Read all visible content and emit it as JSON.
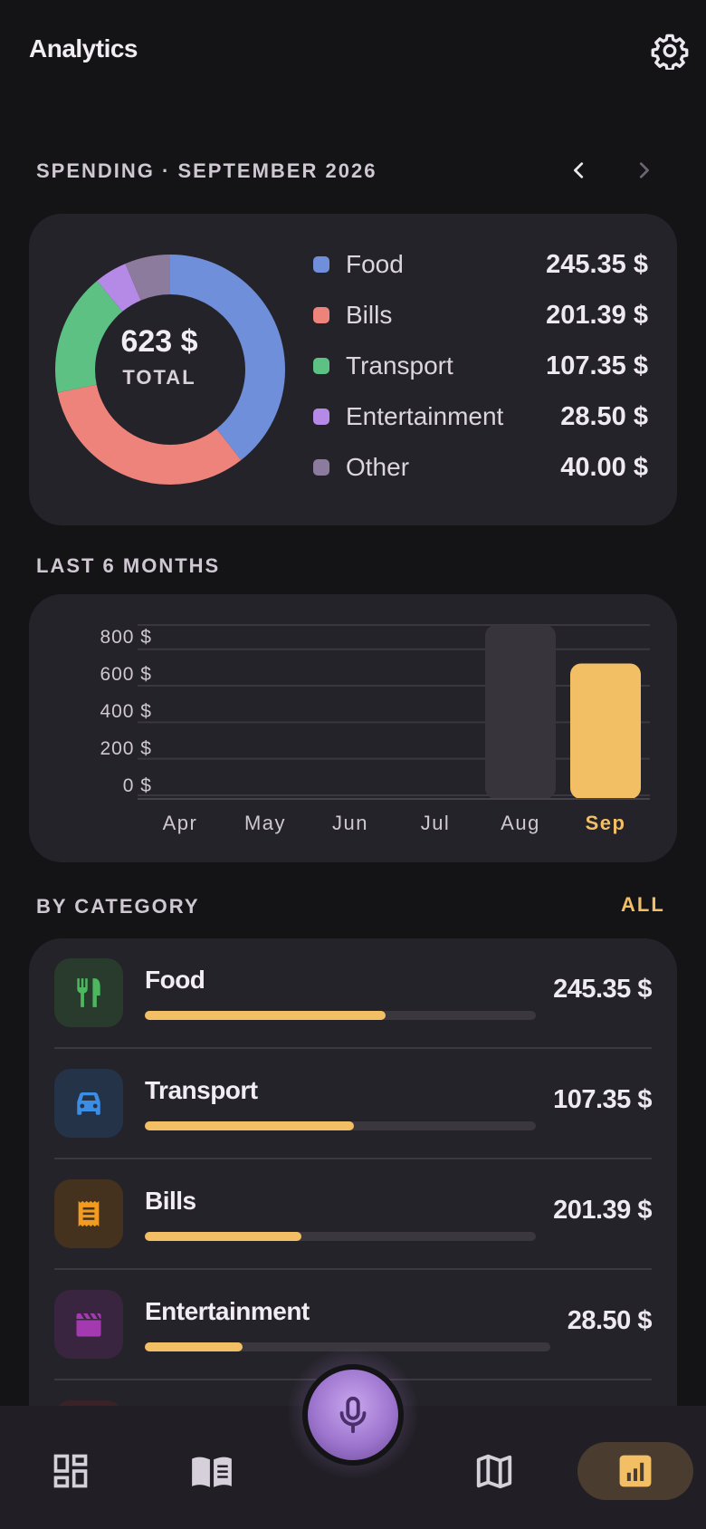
{
  "appbar": {
    "title": "Analytics",
    "settings_icon": "gear-icon"
  },
  "spending": {
    "title": "SPENDING · SEPTEMBER 2026",
    "prev_icon": "chevron-left-icon",
    "next_icon": "chevron-right-icon",
    "total_value": "623 $",
    "total_label": "TOTAL"
  },
  "legend": [
    {
      "label": "Food",
      "value": "245.35 $",
      "color": "#6F8FDB"
    },
    {
      "label": "Bills",
      "value": "201.39 $",
      "color": "#EE837C"
    },
    {
      "label": "Transport",
      "value": "107.35 $",
      "color": "#5DC184"
    },
    {
      "label": "Entertainment",
      "value": "28.50 $",
      "color": "#B58AE6"
    },
    {
      "label": "Other",
      "value": "40.00 $",
      "color": "#8C7B9C"
    }
  ],
  "months_section": {
    "title": "LAST 6 MONTHS"
  },
  "chart_data": [
    {
      "type": "pie",
      "labels": [
        "Food",
        "Bills",
        "Transport",
        "Entertainment",
        "Other"
      ],
      "values": [
        245.35,
        201.39,
        107.35,
        28.5,
        40.0
      ],
      "colors": [
        "#6F8FDB",
        "#EE837C",
        "#5DC184",
        "#B58AE6",
        "#8C7B9C"
      ],
      "title": "",
      "center_value": "623 $",
      "center_label": "TOTAL"
    },
    {
      "type": "bar",
      "title": "",
      "categories": [
        "Apr",
        "May",
        "Jun",
        "Jul",
        "Aug",
        "Sep"
      ],
      "values": [
        0,
        0,
        0,
        0,
        800,
        623
      ],
      "yticks": [
        "0 $",
        "200 $",
        "400 $",
        "600 $",
        "800 $"
      ],
      "ylim": [
        0,
        800
      ],
      "highlight": "Sep",
      "colors": {
        "highlight": "#F2BF65",
        "default": "#38343C"
      },
      "grid": true
    }
  ],
  "categories_section": {
    "title": "BY CATEGORY",
    "all_label": "ALL"
  },
  "categories": [
    {
      "name": "Food",
      "amount": "245.35 $",
      "share": 0.615,
      "icon": "fork-knife-icon",
      "icon_color": "#4CB75E",
      "tile_color": "#283B2C"
    },
    {
      "name": "Transport",
      "amount": "107.35 $",
      "share": 0.535,
      "icon": "car-icon",
      "icon_color": "#3C8DE4",
      "tile_color": "#253349"
    },
    {
      "name": "Bills",
      "amount": "201.39 $",
      "share": 0.4,
      "icon": "receipt-icon",
      "icon_color": "#F29B1E",
      "tile_color": "#44321F"
    },
    {
      "name": "Entertainment",
      "amount": "28.50 $",
      "share": 0.24,
      "icon": "clapperboard-icon",
      "icon_color": "#A43AB0",
      "tile_color": "#3A2541"
    }
  ],
  "bottom_nav": {
    "items": [
      {
        "icon": "dashboard-icon"
      },
      {
        "icon": "book-icon"
      },
      {
        "icon": "microphone-icon"
      },
      {
        "icon": "map-icon"
      },
      {
        "icon": "analytics-icon",
        "active": true
      }
    ]
  }
}
